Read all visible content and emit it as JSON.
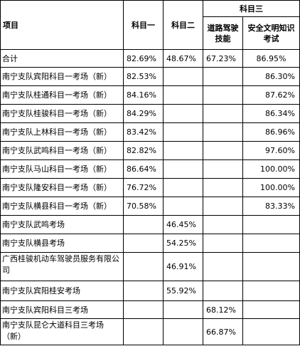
{
  "header": {
    "item": "项目",
    "subject1": "科目一",
    "subject2": "科目二",
    "subject3": "科目三",
    "road_skill": "道路驾驶技能",
    "safe_exam": "安全文明知识考试"
  },
  "rows": [
    {
      "name": "合计",
      "s1": "82.69%",
      "s2": "48.67%",
      "road": "67.23%",
      "safe": "86.95%"
    },
    {
      "name": "南宁支队宾阳科目一考场（新）",
      "s1": "82.53%",
      "s2": "",
      "road": "",
      "safe": "86.30%"
    },
    {
      "name": "南宁支队桂通科目一考场（新）",
      "s1": "84.16%",
      "s2": "",
      "road": "",
      "safe": "87.62%"
    },
    {
      "name": "南宁支队桂骏科目一考场（新）",
      "s1": "84.29%",
      "s2": "",
      "road": "",
      "safe": "86.34%"
    },
    {
      "name": "南宁支队上林科目一考场（新）",
      "s1": "83.42%",
      "s2": "",
      "road": "",
      "safe": "86.96%"
    },
    {
      "name": "南宁支队武鸣科目一考场（新）",
      "s1": "82.82%",
      "s2": "",
      "road": "",
      "safe": "97.60%"
    },
    {
      "name": "南宁支队马山科目一考场（新）",
      "s1": "86.64%",
      "s2": "",
      "road": "",
      "safe": "100.00%"
    },
    {
      "name": "南宁支队隆安科目一考场（新）",
      "s1": "76.72%",
      "s2": "",
      "road": "",
      "safe": "100.00%"
    },
    {
      "name": "南宁支队横县科目一考场（新）",
      "s1": "70.58%",
      "s2": "",
      "road": "",
      "safe": "83.33%"
    },
    {
      "name": "南宁支队武鸣考场",
      "s1": "",
      "s2": "46.45%",
      "road": "",
      "safe": ""
    },
    {
      "name": "南宁支队横县考场",
      "s1": "",
      "s2": "54.25%",
      "road": "",
      "safe": ""
    },
    {
      "name": "广西桂骏机动车驾驶员服务有限公司",
      "s1": "",
      "s2": "46.91%",
      "road": "",
      "safe": ""
    },
    {
      "name": "南宁支队宾阳桂安考场",
      "s1": "",
      "s2": "55.92%",
      "road": "",
      "safe": ""
    },
    {
      "name": "南宁支队宾阳科目三考场",
      "s1": "",
      "s2": "",
      "road": "68.12%",
      "safe": ""
    },
    {
      "name": "南宁支队昆仑大道科目三考场（新）",
      "s1": "",
      "s2": "",
      "road": "66.87%",
      "safe": ""
    }
  ]
}
